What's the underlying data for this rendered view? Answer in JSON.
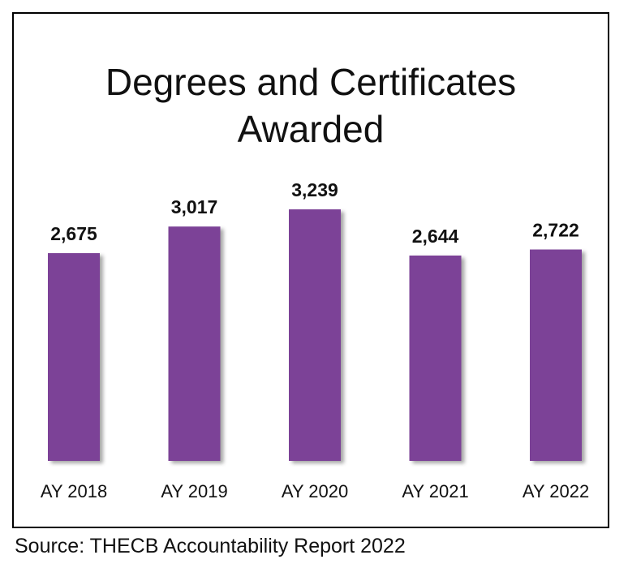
{
  "chart_data": {
    "type": "bar",
    "title_lines": [
      "Degrees and Certificates",
      "Awarded"
    ],
    "categories": [
      "AY 2018",
      "AY 2019",
      "AY 2020",
      "AY 2021",
      "AY 2022"
    ],
    "values": [
      2675,
      3017,
      3239,
      2644,
      2722
    ],
    "value_labels": [
      "2,675",
      "3,017",
      "3,239",
      "2,644",
      "2,722"
    ],
    "xlabel": "",
    "ylabel": "",
    "ylim": [
      0,
      3239
    ],
    "grid": false,
    "legend": "none",
    "bar_color": "#7B4397"
  },
  "source": "Source: THECB Accountability Report 2022"
}
